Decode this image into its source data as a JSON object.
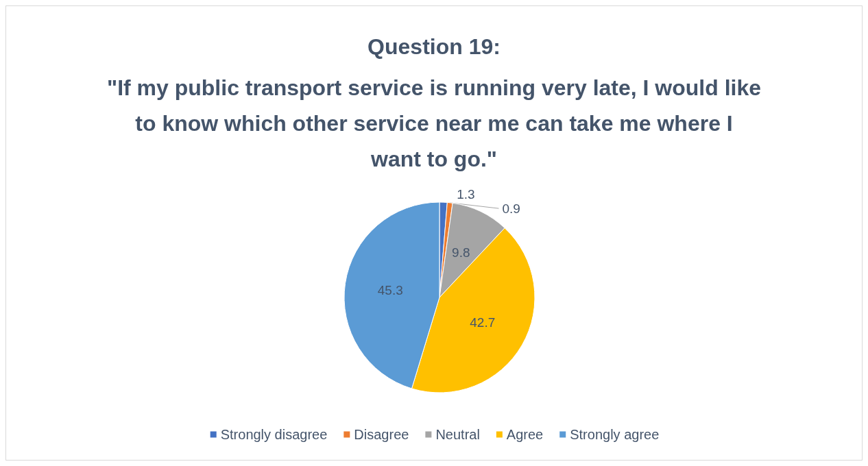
{
  "chart_data": {
    "type": "pie",
    "title": "Question 19:",
    "subtitle": "\"If my public transport service is running very late, I would like to know which other service near me can take me where I want to go.\"",
    "categories": [
      "Strongly disagree",
      "Disagree",
      "Neutral",
      "Agree",
      "Strongly agree"
    ],
    "values": [
      1.3,
      0.9,
      9.8,
      42.7,
      45.3
    ],
    "colors": [
      "#4472c4",
      "#ed7d31",
      "#a5a5a5",
      "#ffc000",
      "#5b9bd5"
    ],
    "data_labels": true,
    "legend": "bottom"
  }
}
